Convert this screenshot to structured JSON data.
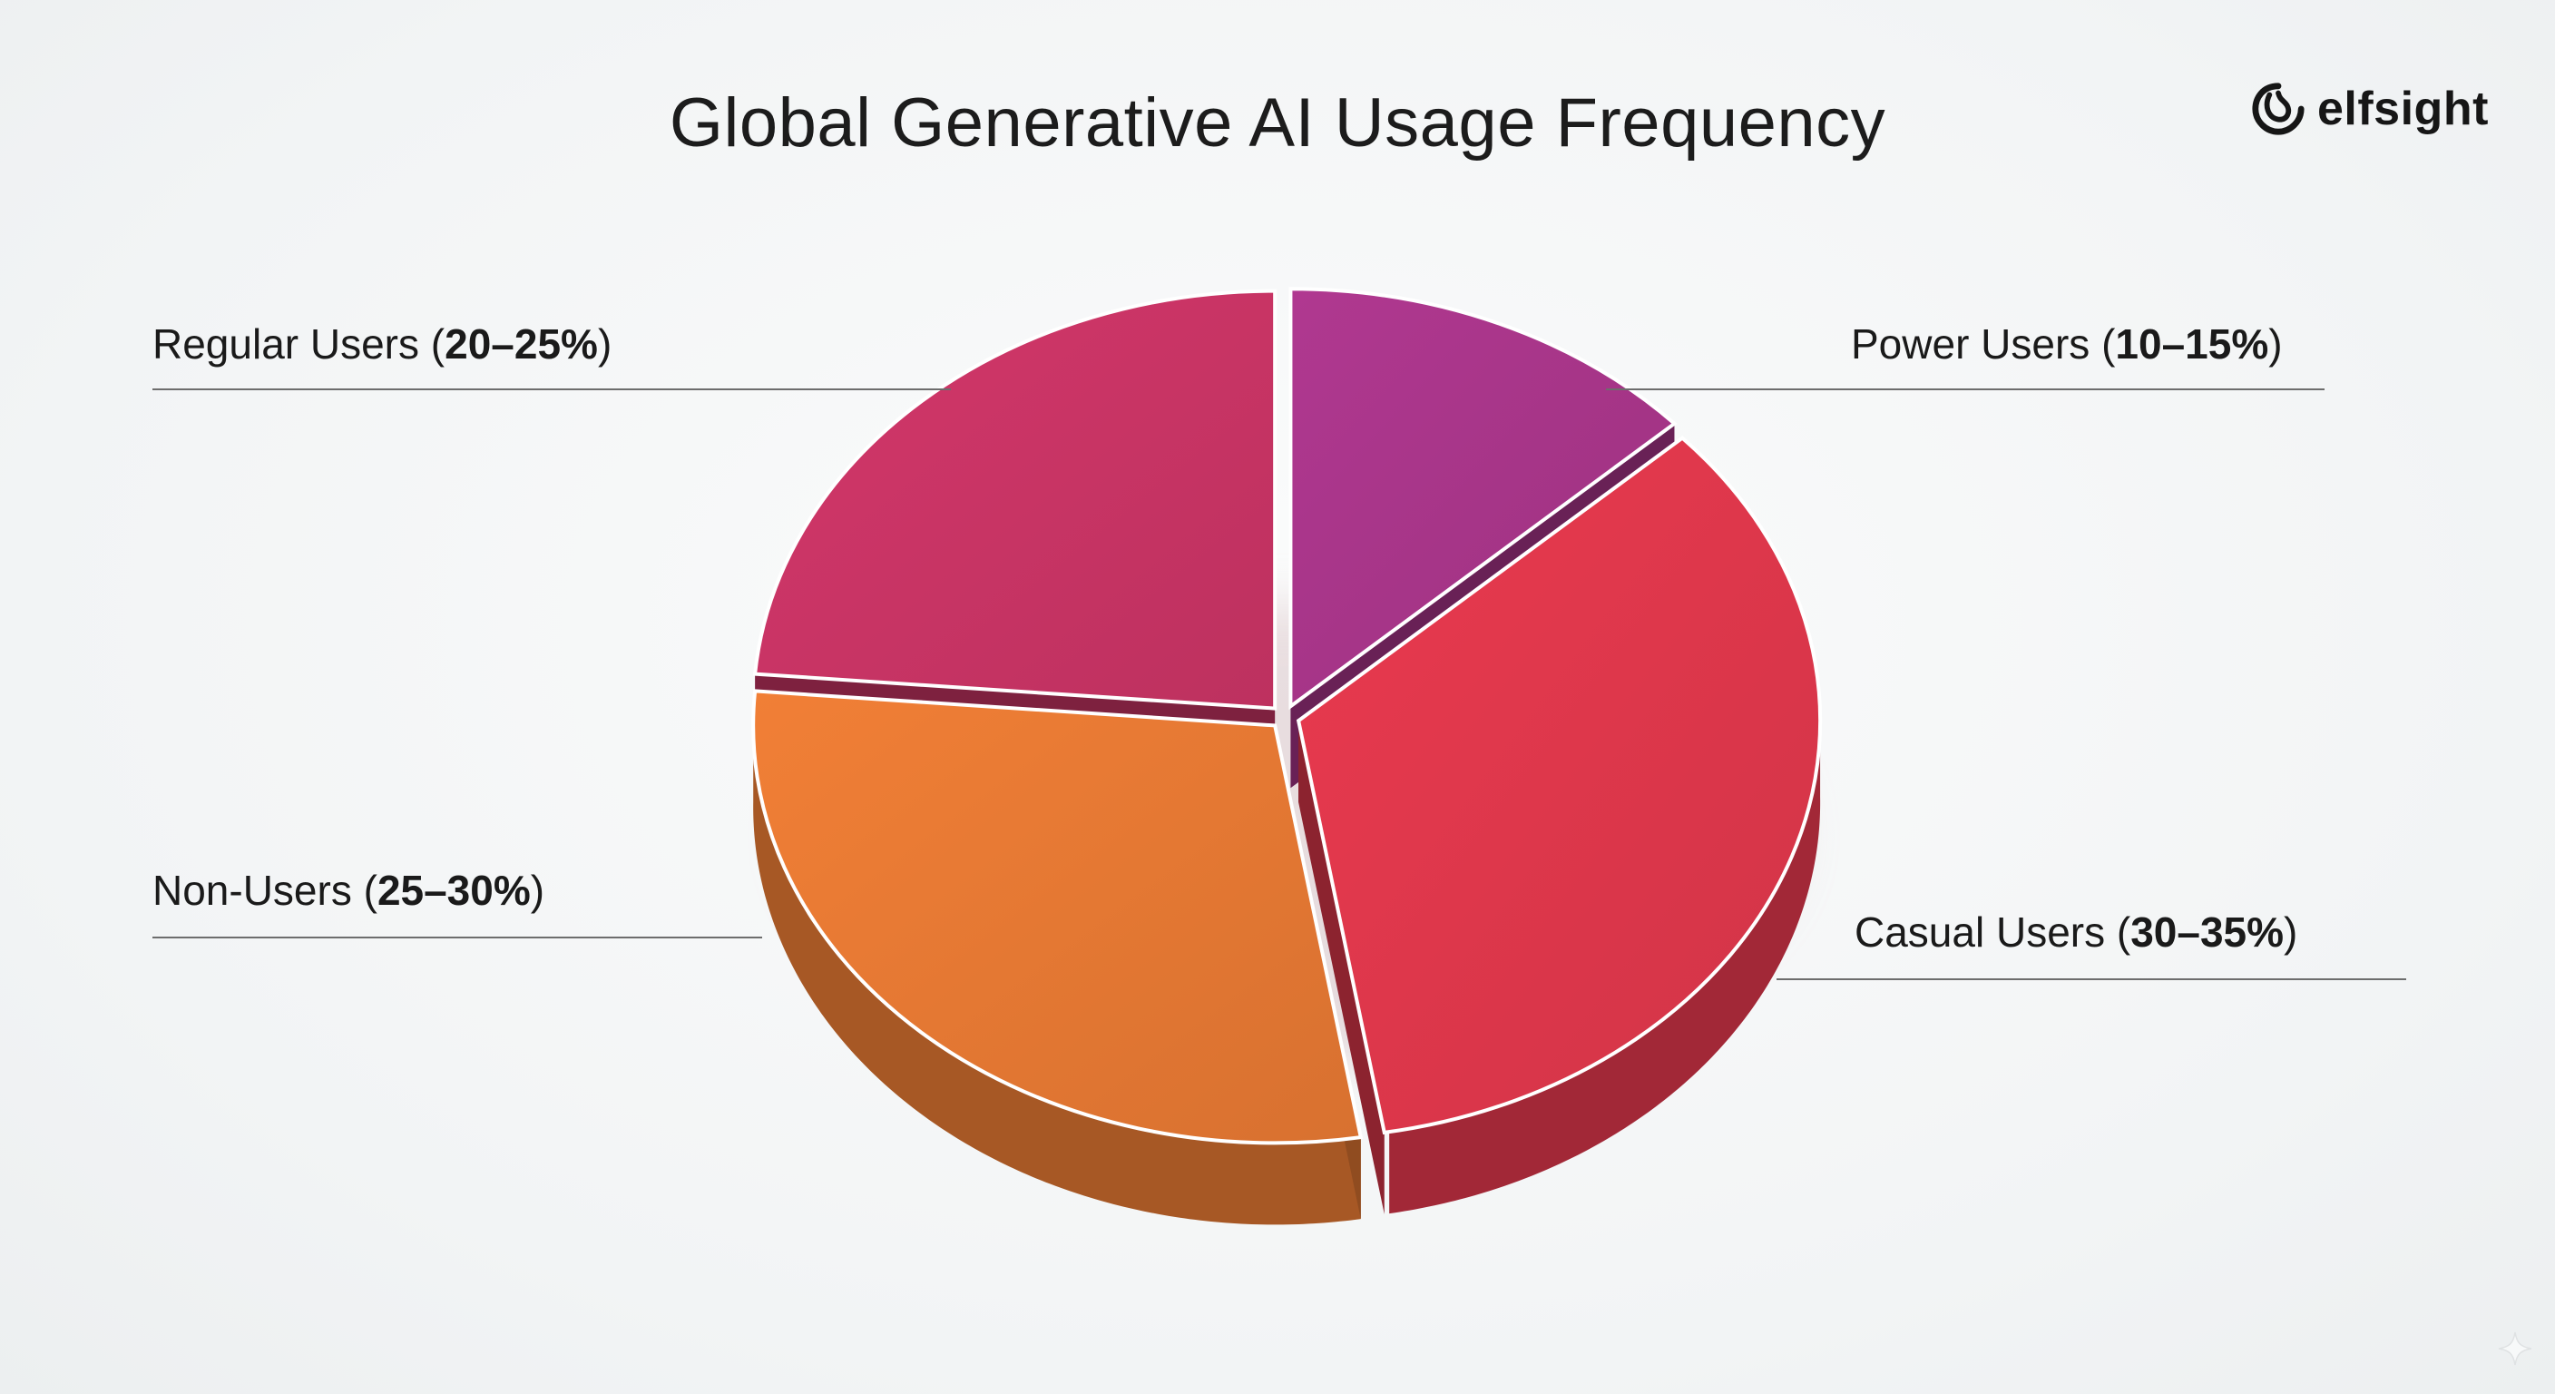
{
  "title": "Global Generative AI Usage Frequency",
  "brand": {
    "name": "elfsight",
    "icon": "elfsight-logo-icon"
  },
  "chart_data": {
    "type": "pie",
    "title": "Global Generative AI Usage Frequency",
    "style": "3d-exploded",
    "slices": [
      {
        "label": "Power Users",
        "range": "10–15%",
        "value": 12.5,
        "color": "#a9368a"
      },
      {
        "label": "Casual Users",
        "range": "30–35%",
        "value": 32.5,
        "color": "#e1384c"
      },
      {
        "label": "Non-Users",
        "range": "25–30%",
        "value": 27.5,
        "color": "#e87a34"
      },
      {
        "label": "Regular Users",
        "range": "20–25%",
        "value": 22.5,
        "color": "#cb3566"
      }
    ]
  }
}
